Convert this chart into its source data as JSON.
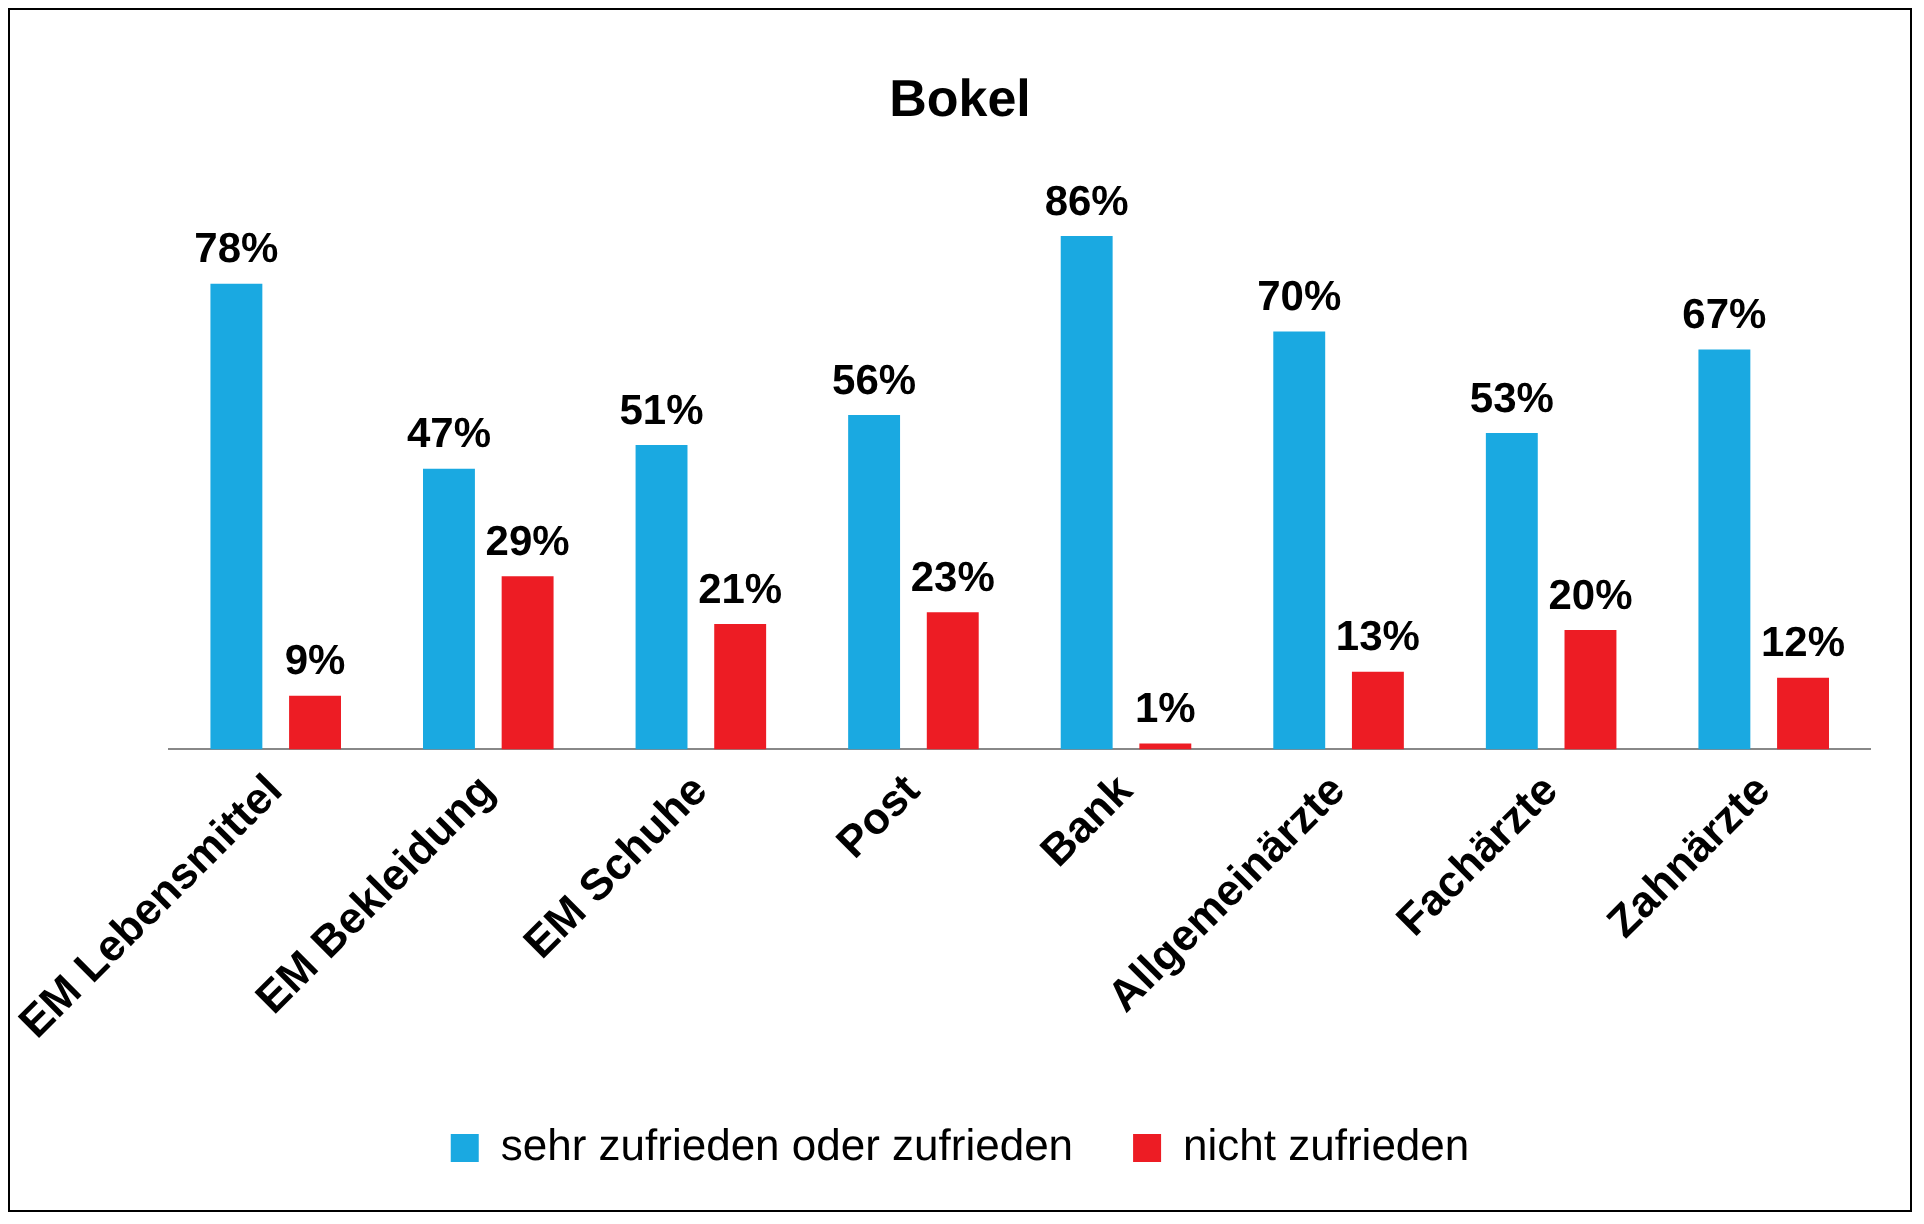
{
  "chart_data": {
    "type": "bar",
    "title": "Bokel",
    "categories": [
      "EM Lebensmittel",
      "EM Bekleidung",
      "EM Schuhe",
      "Post",
      "Bank",
      "Allgemeinärzte",
      "Fachärzte",
      "Zahnärzte"
    ],
    "series": [
      {
        "name": "sehr zufrieden oder zufrieden",
        "color": "#1aa9e1",
        "values": [
          78,
          47,
          51,
          56,
          86,
          70,
          53,
          67
        ],
        "value_labels": [
          "78%",
          "47%",
          "51%",
          "56%",
          "86%",
          "70%",
          "53%",
          "67%"
        ]
      },
      {
        "name": "nicht zufrieden",
        "color": "#ed1c24",
        "values": [
          9,
          29,
          21,
          23,
          1,
          13,
          20,
          12
        ],
        "value_labels": [
          "9%",
          "29%",
          "21%",
          "23%",
          "1%",
          "13%",
          "20%",
          "12%"
        ]
      }
    ],
    "tick_labels": "x",
    "grid": false,
    "legend": "bottom"
  }
}
